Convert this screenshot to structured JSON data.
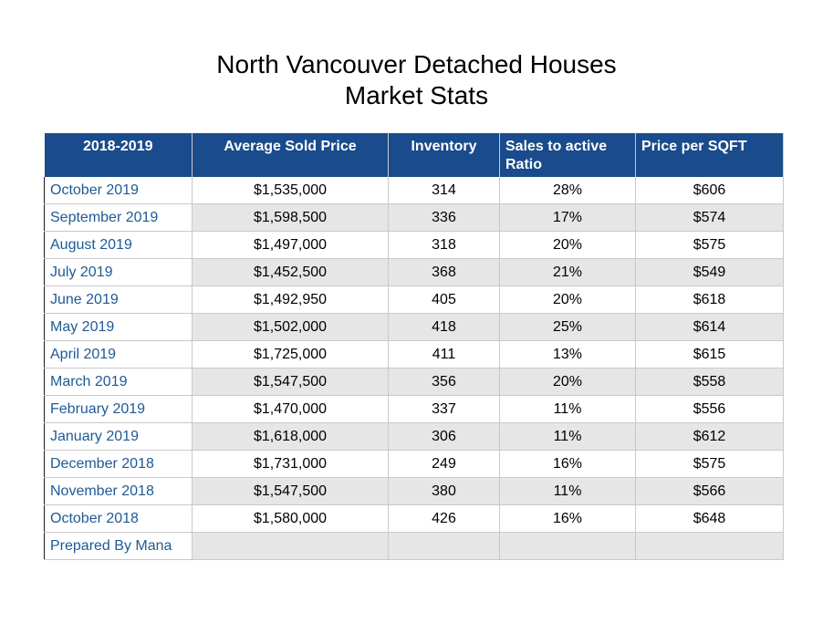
{
  "title_line1": "North Vancouver Detached Houses",
  "title_line2": "Market Stats",
  "colors": {
    "header_bg": "#1a4b8c",
    "period_text": "#1e5a96",
    "alt_row": "#e6e6e6"
  },
  "chart_data": {
    "type": "table",
    "columns": [
      "2018-2019",
      "Average Sold Price",
      "Inventory",
      "Sales to active Ratio",
      "Price per SQFT"
    ],
    "rows": [
      [
        "October 2019",
        "$1,535,000",
        "314",
        "28%",
        "$606"
      ],
      [
        "September 2019",
        "$1,598,500",
        "336",
        "17%",
        "$574"
      ],
      [
        "August 2019",
        "$1,497,000",
        "318",
        "20%",
        "$575"
      ],
      [
        "July 2019",
        "$1,452,500",
        "368",
        "21%",
        "$549"
      ],
      [
        "June 2019",
        "$1,492,950",
        "405",
        "20%",
        "$618"
      ],
      [
        "May 2019",
        "$1,502,000",
        "418",
        "25%",
        "$614"
      ],
      [
        "April 2019",
        "$1,725,000",
        "411",
        "13%",
        "$615"
      ],
      [
        "March 2019",
        "$1,547,500",
        "356",
        "20%",
        "$558"
      ],
      [
        "February 2019",
        "$1,470,000",
        "337",
        "11%",
        "$556"
      ],
      [
        "January 2019",
        "$1,618,000",
        "306",
        "11%",
        "$612"
      ],
      [
        "December 2018",
        "$1,731,000",
        "249",
        "16%",
        "$575"
      ],
      [
        "November 2018",
        "$1,547,500",
        "380",
        "11%",
        "$566"
      ],
      [
        "October 2018",
        "$1,580,000",
        "426",
        "16%",
        "$648"
      ],
      [
        "Prepared By Mana",
        "",
        "",
        "",
        ""
      ]
    ]
  }
}
